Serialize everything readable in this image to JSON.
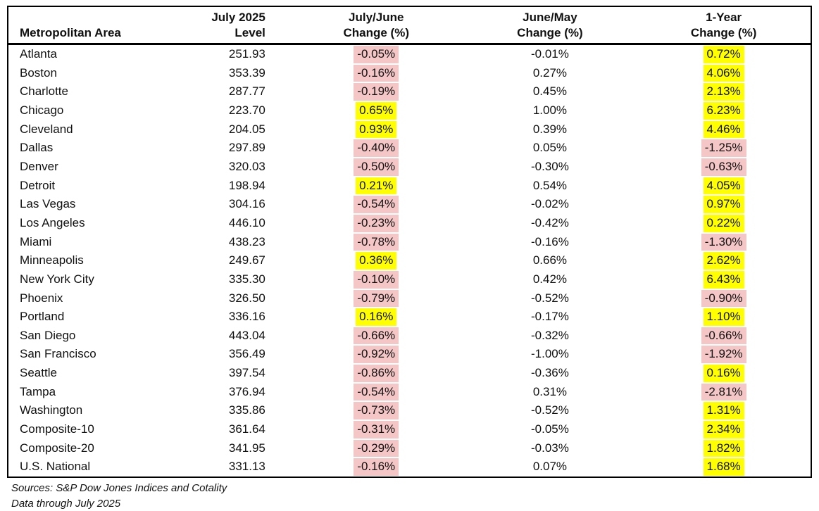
{
  "chart_data": {
    "type": "table",
    "headers": {
      "metro": "Metropolitan Area",
      "level": {
        "line1": "July 2025",
        "line2": "Level"
      },
      "jul_jun": {
        "line1": "July/June",
        "line2": "Change (%)"
      },
      "jun_may": {
        "line1": "June/May",
        "line2": "Change (%)"
      },
      "one_year": {
        "line1": "1-Year",
        "line2": "Change (%)"
      }
    },
    "highlight_rule": "July/June and 1-Year change columns: positive values highlighted yellow, negative values highlighted pink; June/May column not highlighted",
    "rows": [
      {
        "metro": "Atlanta",
        "level": "251.93",
        "jul_jun": "-0.05%",
        "jun_may": "-0.01%",
        "one_year": "0.72%"
      },
      {
        "metro": "Boston",
        "level": "353.39",
        "jul_jun": "-0.16%",
        "jun_may": "0.27%",
        "one_year": "4.06%"
      },
      {
        "metro": "Charlotte",
        "level": "287.77",
        "jul_jun": "-0.19%",
        "jun_may": "0.45%",
        "one_year": "2.13%"
      },
      {
        "metro": "Chicago",
        "level": "223.70",
        "jul_jun": "0.65%",
        "jun_may": "1.00%",
        "one_year": "6.23%"
      },
      {
        "metro": "Cleveland",
        "level": "204.05",
        "jul_jun": "0.93%",
        "jun_may": "0.39%",
        "one_year": "4.46%"
      },
      {
        "metro": "Dallas",
        "level": "297.89",
        "jul_jun": "-0.40%",
        "jun_may": "0.05%",
        "one_year": "-1.25%"
      },
      {
        "metro": "Denver",
        "level": "320.03",
        "jul_jun": "-0.50%",
        "jun_may": "-0.30%",
        "one_year": "-0.63%"
      },
      {
        "metro": "Detroit",
        "level": "198.94",
        "jul_jun": "0.21%",
        "jun_may": "0.54%",
        "one_year": "4.05%"
      },
      {
        "metro": "Las Vegas",
        "level": "304.16",
        "jul_jun": "-0.54%",
        "jun_may": "-0.02%",
        "one_year": "0.97%"
      },
      {
        "metro": "Los Angeles",
        "level": "446.10",
        "jul_jun": "-0.23%",
        "jun_may": "-0.42%",
        "one_year": "0.22%"
      },
      {
        "metro": "Miami",
        "level": "438.23",
        "jul_jun": "-0.78%",
        "jun_may": "-0.16%",
        "one_year": "-1.30%"
      },
      {
        "metro": "Minneapolis",
        "level": "249.67",
        "jul_jun": "0.36%",
        "jun_may": "0.66%",
        "one_year": "2.62%"
      },
      {
        "metro": "New York City",
        "level": "335.30",
        "jul_jun": "-0.10%",
        "jun_may": "0.42%",
        "one_year": "6.43%"
      },
      {
        "metro": "Phoenix",
        "level": "326.50",
        "jul_jun": "-0.79%",
        "jun_may": "-0.52%",
        "one_year": "-0.90%"
      },
      {
        "metro": "Portland",
        "level": "336.16",
        "jul_jun": "0.16%",
        "jun_may": "-0.17%",
        "one_year": "1.10%"
      },
      {
        "metro": "San Diego",
        "level": "443.04",
        "jul_jun": "-0.66%",
        "jun_may": "-0.32%",
        "one_year": "-0.66%"
      },
      {
        "metro": "San Francisco",
        "level": "356.49",
        "jul_jun": "-0.92%",
        "jun_may": "-1.00%",
        "one_year": "-1.92%"
      },
      {
        "metro": "Seattle",
        "level": "397.54",
        "jul_jun": "-0.86%",
        "jun_may": "-0.36%",
        "one_year": "0.16%"
      },
      {
        "metro": "Tampa",
        "level": "376.94",
        "jul_jun": "-0.54%",
        "jun_may": "0.31%",
        "one_year": "-2.81%"
      },
      {
        "metro": "Washington",
        "level": "335.86",
        "jul_jun": "-0.73%",
        "jun_may": "-0.52%",
        "one_year": "1.31%"
      },
      {
        "metro": "Composite-10",
        "level": "361.64",
        "jul_jun": "-0.31%",
        "jun_may": "-0.05%",
        "one_year": "2.34%"
      },
      {
        "metro": "Composite-20",
        "level": "341.95",
        "jul_jun": "-0.29%",
        "jun_may": "-0.03%",
        "one_year": "1.82%"
      },
      {
        "metro": "U.S. National",
        "level": "331.13",
        "jul_jun": "-0.16%",
        "jun_may": "0.07%",
        "one_year": "1.68%"
      }
    ]
  },
  "colors": {
    "positive_highlight": "#ffff00",
    "negative_highlight": "#f5c6c6",
    "border": "#000000",
    "text": "#111111"
  },
  "footer": {
    "sources": "Sources: S&P Dow Jones Indices and Cotality",
    "data_through": "Data through July 2025"
  }
}
